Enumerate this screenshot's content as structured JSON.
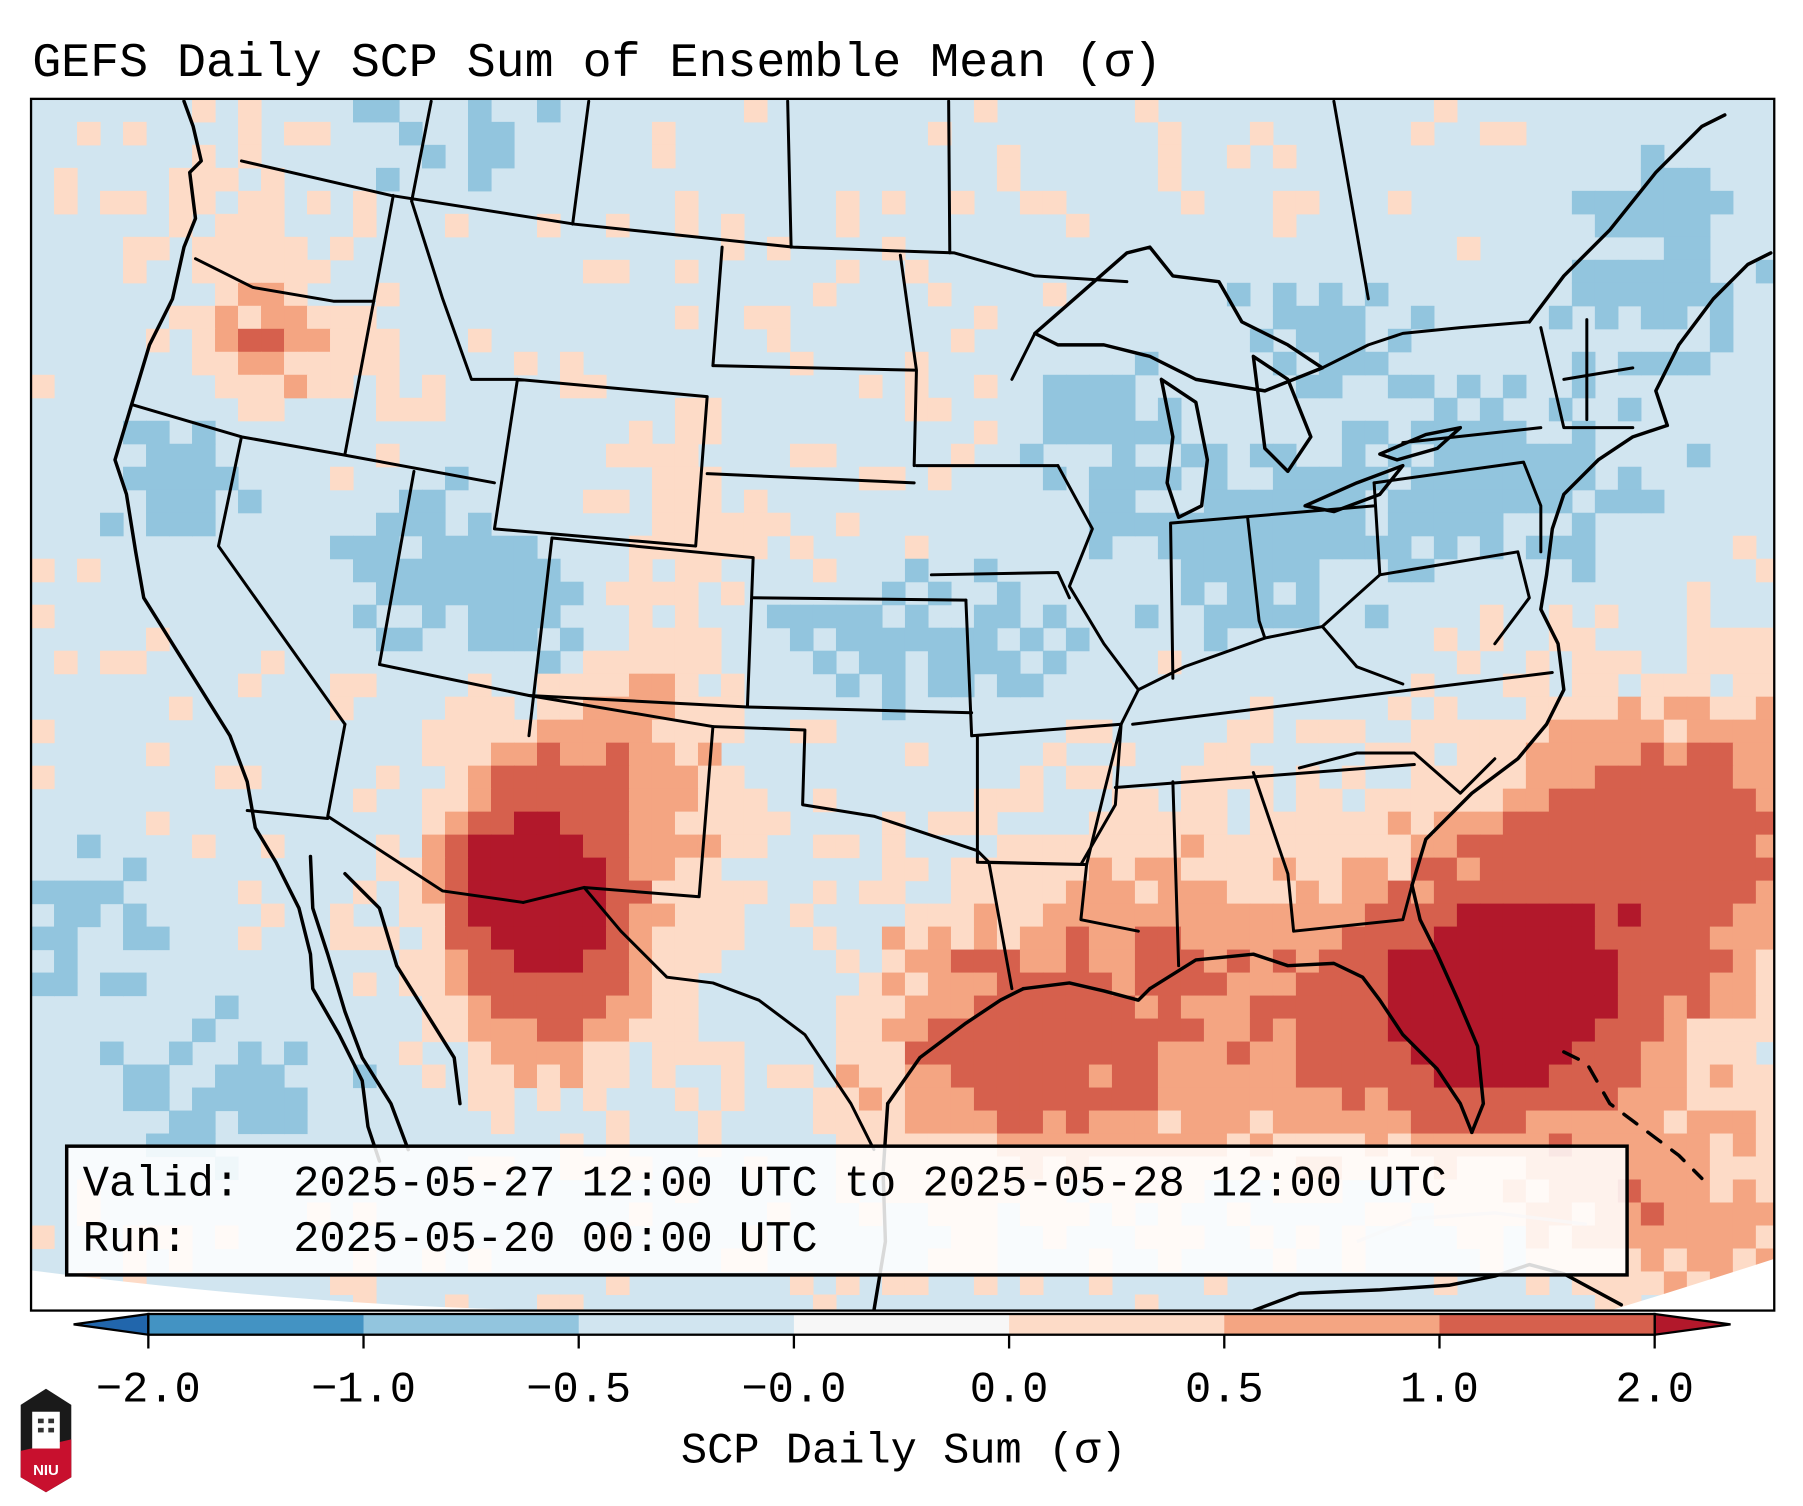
{
  "title": "GEFS Daily SCP Sum of Ensemble Mean (σ)",
  "annotation": {
    "valid_label": "Valid:",
    "valid_value": "2025-05-27 12:00 UTC to 2025-05-28 12:00 UTC",
    "run_label": "Run:",
    "run_value": "2025-05-20 00:00 UTC"
  },
  "logo": {
    "text": "NIU",
    "name": "niu-logo"
  },
  "chart_data": {
    "type": "heatmap",
    "title": "GEFS Daily SCP Sum of Ensemble Mean (σ)",
    "region": "Contiguous United States",
    "colorbar": {
      "label": "SCP Daily Sum (σ)",
      "orientation": "horizontal",
      "placement": "bottom",
      "extend": "both",
      "tick_labels": [
        "−2.0",
        "−1.0",
        "−0.5",
        "−0.0",
        "0.0",
        "0.5",
        "1.0",
        "2.0"
      ],
      "bins": [
        {
          "range": "< -2.0",
          "color": "#2166ac"
        },
        {
          "range": "-2.0 to -1.0",
          "color": "#4393c3"
        },
        {
          "range": "-1.0 to -0.5",
          "color": "#92c5de"
        },
        {
          "range": "-0.5 to -0.0",
          "color": "#d1e5f0"
        },
        {
          "range": "-0.0 to 0.0",
          "color": "#f7f7f7"
        },
        {
          "range": "0.0 to 0.5",
          "color": "#fddbc7"
        },
        {
          "range": "0.5 to 1.0",
          "color": "#f4a582"
        },
        {
          "range": "1.0 to 2.0",
          "color": "#d6604d"
        },
        {
          "range": "> 2.0",
          "color": "#b2182b"
        }
      ]
    },
    "regions": [
      {
        "name": "Southeast NM / West TX / Big Bend",
        "category": "> 2.0 peak"
      },
      {
        "name": "Southern Florida / Bahamas",
        "category": "> 2.0 peak"
      },
      {
        "name": "Gulf of Mexico",
        "category": "0.5 to 2.0"
      },
      {
        "name": "Western Atlantic off Southeast coast",
        "category": "0.5 to 2.0"
      },
      {
        "name": "New Mexico / Eastern Colorado",
        "category": "0.0 to 1.0"
      },
      {
        "name": "Central Oregon",
        "category": "0.5 to 2.0"
      },
      {
        "name": "Central Plains / Midwest / Northeast",
        "category": "-1.0 to 0.0"
      },
      {
        "name": "Eastern Pacific",
        "category": "-1.0 to 0.0"
      }
    ]
  }
}
